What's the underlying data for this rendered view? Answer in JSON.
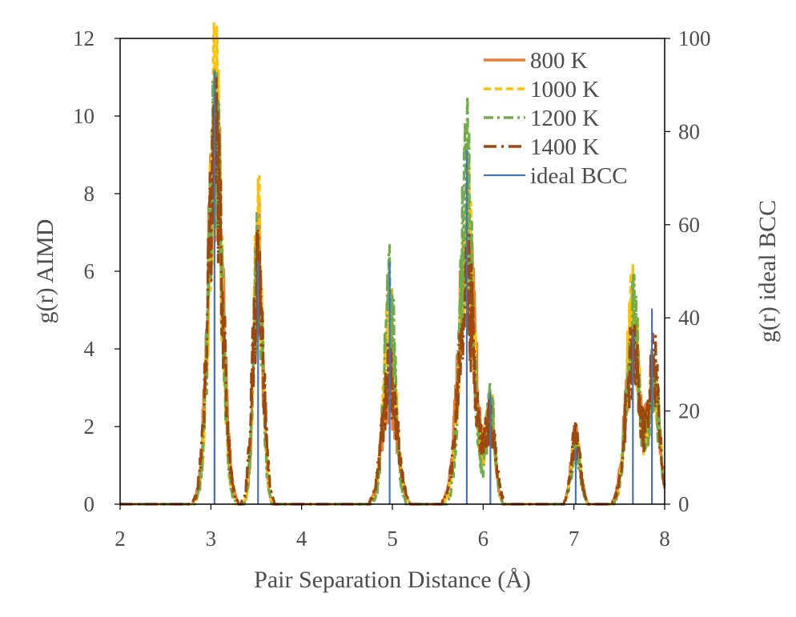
{
  "chart_data": {
    "type": "line",
    "xlabel": "Pair Separation Distance (Å)",
    "ylabel": "g(r) AIMD",
    "y2label": "g(r) ideal BCC",
    "xlim": [
      2,
      8
    ],
    "ylim": [
      0,
      12
    ],
    "y2lim": [
      0,
      100
    ],
    "x_ticks": [
      "2",
      "3",
      "4",
      "5",
      "6",
      "7",
      "8"
    ],
    "y_ticks": [
      "0",
      "2",
      "4",
      "6",
      "8",
      "10",
      "12"
    ],
    "y2_ticks": [
      "0",
      "20",
      "40",
      "60",
      "80",
      "100"
    ],
    "grid": false,
    "legend_position": "top-right",
    "series": [
      {
        "name": "800 K",
        "color": "#ED7D31",
        "dash": "solid",
        "peaks": [
          [
            3.05,
            10.2,
            0.08
          ],
          [
            3.52,
            7.0,
            0.05
          ],
          [
            4.97,
            3.3,
            0.08
          ],
          [
            5.82,
            7.5,
            0.09
          ],
          [
            6.08,
            2.5,
            0.05
          ],
          [
            7.02,
            1.9,
            0.05
          ],
          [
            7.65,
            4.6,
            0.08
          ],
          [
            7.88,
            3.8,
            0.06
          ]
        ]
      },
      {
        "name": "1000 K",
        "color": "#FFC000",
        "dash": "dashed",
        "peaks": [
          [
            3.05,
            11.0,
            0.07
          ],
          [
            3.52,
            7.6,
            0.05
          ],
          [
            4.97,
            5.2,
            0.07
          ],
          [
            5.82,
            7.9,
            0.08
          ],
          [
            6.08,
            2.7,
            0.05
          ],
          [
            7.02,
            1.7,
            0.05
          ],
          [
            7.65,
            5.5,
            0.07
          ],
          [
            7.88,
            3.6,
            0.06
          ]
        ]
      },
      {
        "name": "1200 K",
        "color": "#70AD47",
        "dash": "dashdot",
        "peaks": [
          [
            3.05,
            11.3,
            0.07
          ],
          [
            3.52,
            6.8,
            0.05
          ],
          [
            4.97,
            6.0,
            0.06
          ],
          [
            5.82,
            9.1,
            0.07
          ],
          [
            6.08,
            2.8,
            0.05
          ],
          [
            7.02,
            1.6,
            0.05
          ],
          [
            7.65,
            5.3,
            0.07
          ],
          [
            7.88,
            3.4,
            0.06
          ]
        ]
      },
      {
        "name": "1400 K",
        "color": "#9E480E",
        "dash": "longdashdot",
        "peaks": [
          [
            3.05,
            9.8,
            0.08
          ],
          [
            3.52,
            6.5,
            0.06
          ],
          [
            4.97,
            3.7,
            0.08
          ],
          [
            5.82,
            6.2,
            0.09
          ],
          [
            6.08,
            2.3,
            0.06
          ],
          [
            7.02,
            1.9,
            0.05
          ],
          [
            7.65,
            4.2,
            0.08
          ],
          [
            7.88,
            4.0,
            0.06
          ]
        ]
      },
      {
        "name": "ideal BCC",
        "color": "#4472C4",
        "dash": "solid",
        "axis": "right",
        "sticks": [
          [
            3.04,
            93
          ],
          [
            3.52,
            52
          ],
          [
            4.97,
            52
          ],
          [
            5.82,
            76
          ],
          [
            6.08,
            24
          ],
          [
            7.02,
            12
          ],
          [
            7.65,
            37
          ],
          [
            7.86,
            42
          ]
        ]
      }
    ]
  }
}
